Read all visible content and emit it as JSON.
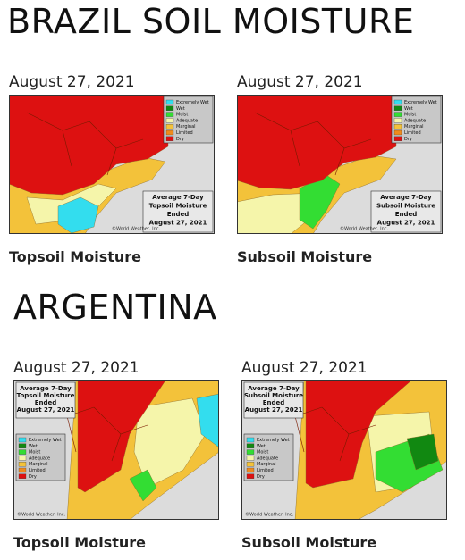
{
  "sections": [
    {
      "title": "BRAZIL SOIL MOISTURE",
      "maps": [
        {
          "date": "August 27, 2021",
          "caption": "Topsoil Moisture",
          "box": [
            "Average 7-Day",
            "Topsoil Moisture",
            "Ended",
            "August 27, 2021"
          ]
        },
        {
          "date": "August 27, 2021",
          "caption": "Subsoil Moisture",
          "box": [
            "Average 7-Day",
            "Subsoil Moisture",
            "Ended",
            "August 27, 2021"
          ]
        }
      ]
    },
    {
      "title": "ARGENTINA",
      "maps": [
        {
          "date": "August 27, 2021",
          "caption": "Topsoil Moisture",
          "box": [
            "Average 7-Day",
            "Topsoil Moisture",
            "Ended",
            "August 27, 2021"
          ]
        },
        {
          "date": "August 27, 2021",
          "caption": "Subsoil Moisture",
          "box": [
            "Average 7-Day",
            "Subsoil Moisture",
            "Ended",
            "August 27, 2021"
          ]
        }
      ]
    }
  ],
  "legend": [
    "Extremely Wet",
    "Wet",
    "Moist",
    "Adequate",
    "Marginal",
    "Limited",
    "Dry"
  ],
  "credit": "©World Weather, Inc."
}
